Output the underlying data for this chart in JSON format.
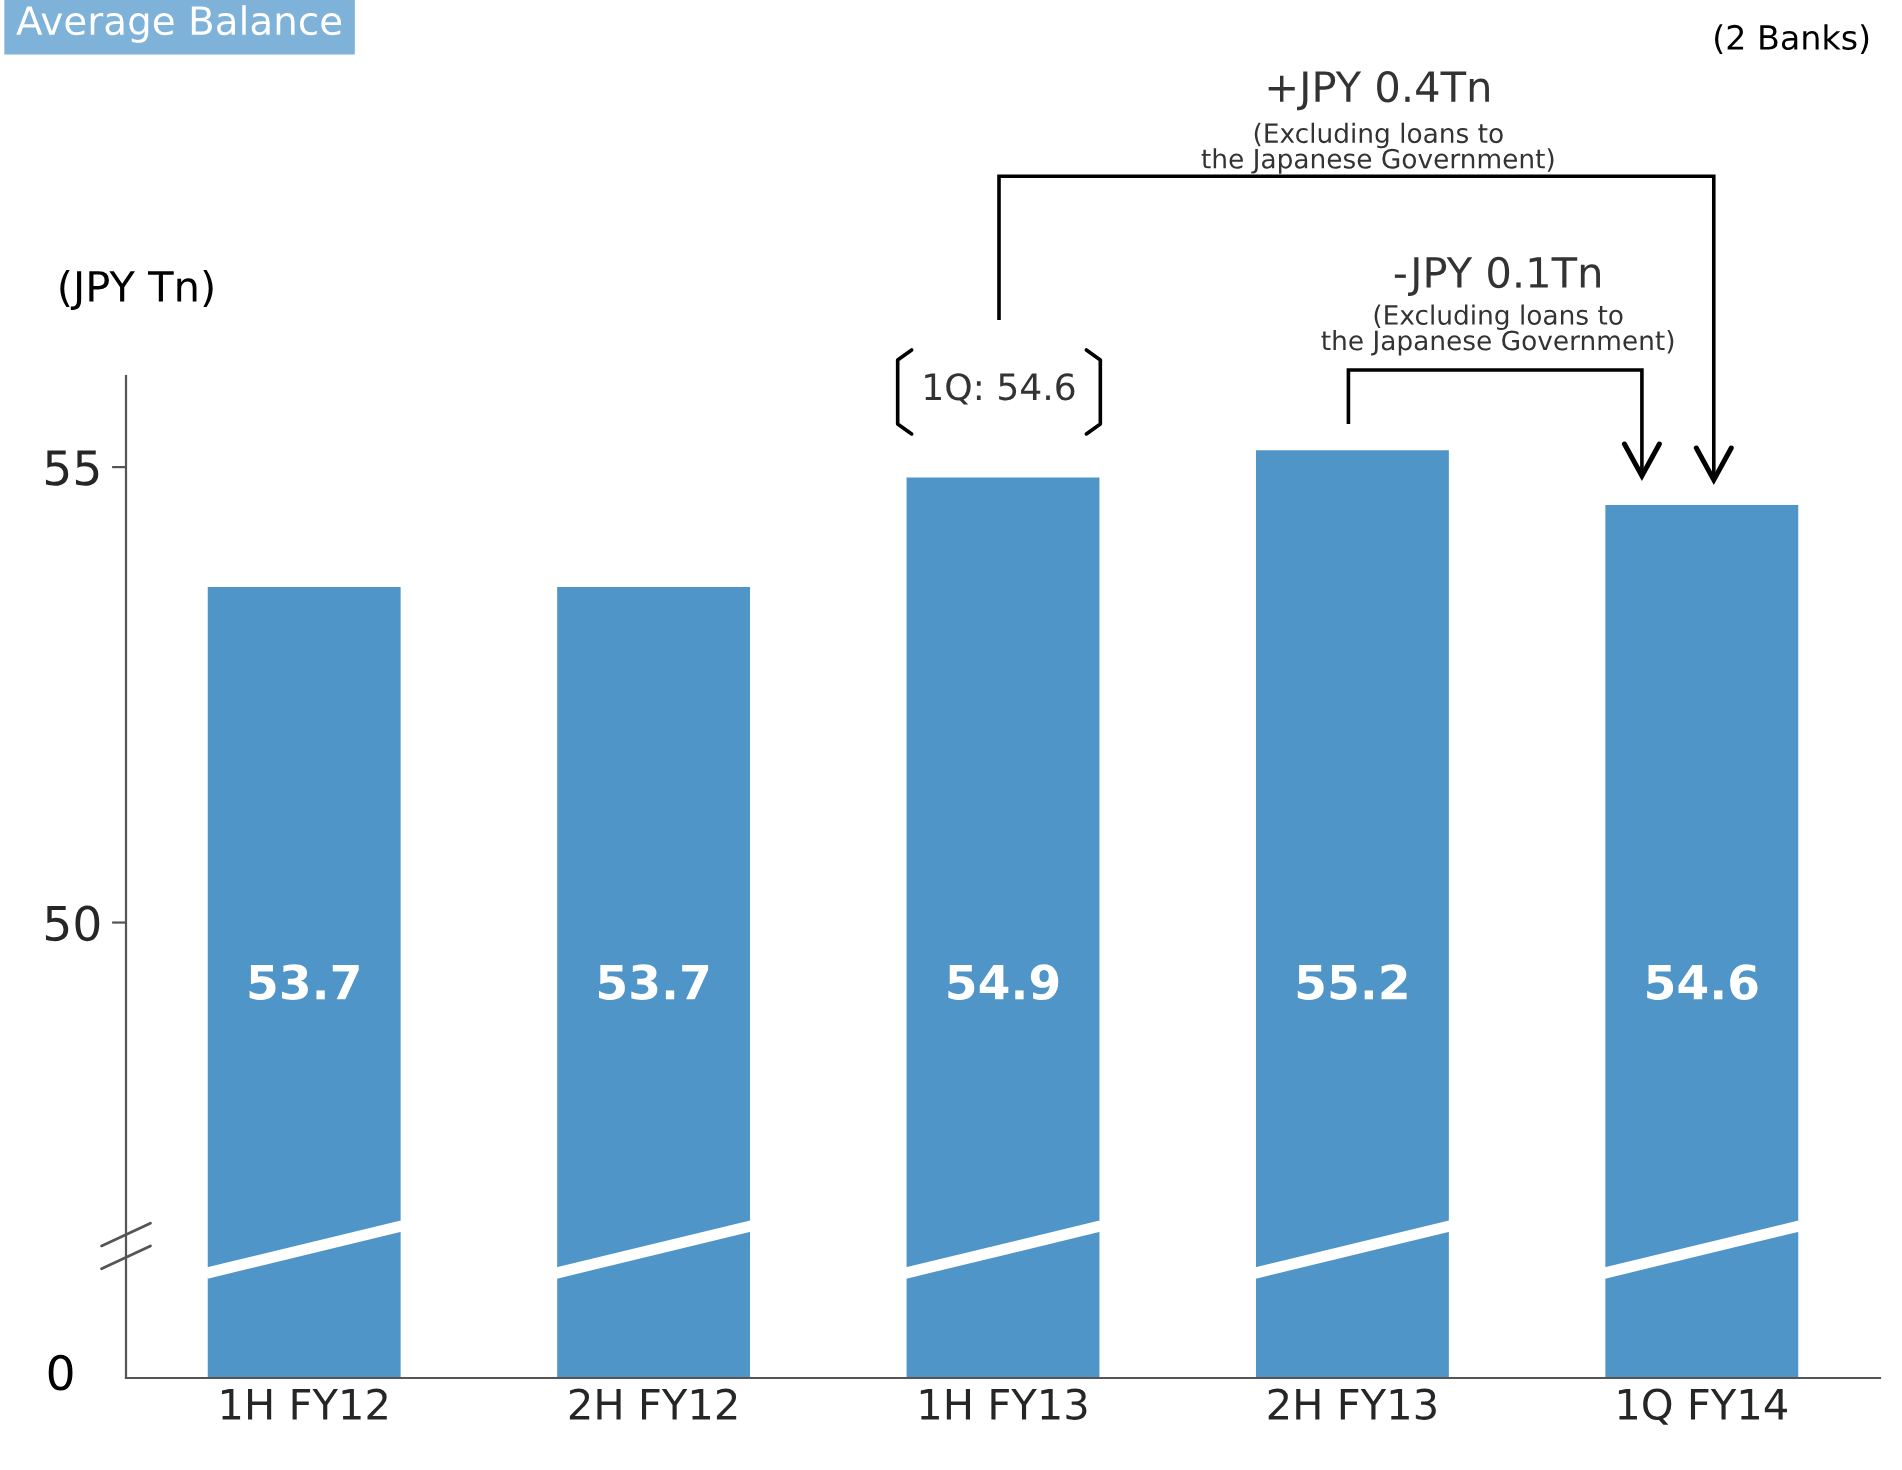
{
  "chart_data": {
    "type": "bar",
    "title": "Average Balance",
    "categories": [
      "1H FY12",
      "2H FY12",
      "1H FY13",
      "2H FY13",
      "1Q FY14"
    ],
    "values": [
      53.7,
      53.7,
      54.9,
      55.2,
      54.6
    ],
    "color": "#4f95c8",
    "ylim": [
      45,
      56
    ],
    "yticks": [
      50,
      55
    ],
    "data_labels": true,
    "grid": false,
    "legend": false,
    "annotations": [
      "(2 Banks)",
      "+JPY 0.4Tn",
      "(Excluding loans to\nthe Japanese Government)",
      "-JPY 0.1Tn",
      "(Excluding loans to\nthe Japanese Government)",
      "1Q: 54.6",
      "(JPY Tn)",
      "0"
    ]
  }
}
